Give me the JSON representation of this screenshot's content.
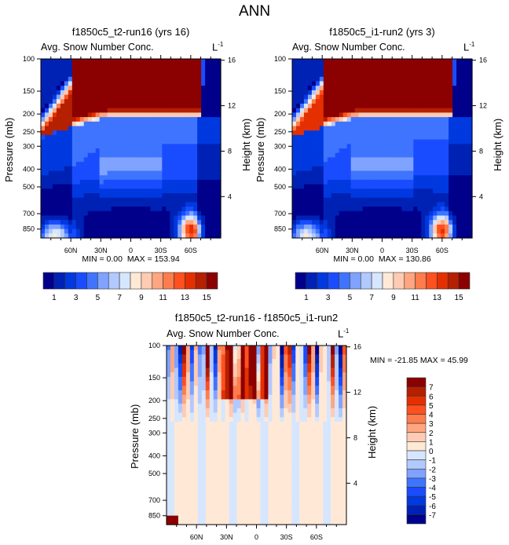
{
  "main_title": "ANN",
  "chart_data": [
    {
      "type": "heatmap",
      "title": "f1850c5_t2-run16 (yrs 16)",
      "subtitle": "Avg. Snow Number Conc.",
      "units": "L",
      "units_exp": "-1",
      "ylabel": "Pressure (mb)",
      "ylabel_right": "Height (km)",
      "yticks": [
        "100",
        "150",
        "200",
        "250",
        "300",
        "400",
        "500",
        "700",
        "850"
      ],
      "yticks_right": [
        "16",
        "12",
        "8",
        "4"
      ],
      "xticks": [
        "60N",
        "30N",
        "0",
        "30S",
        "60S"
      ],
      "min_label": "MIN =   0.00",
      "max_label": "MAX = 153.94",
      "colorbar_labels": [
        "1",
        "3",
        "5",
        "7",
        "9",
        "11",
        "13",
        "15"
      ],
      "colorbar_levels": [
        1,
        2,
        3,
        4,
        5,
        6,
        7,
        8,
        9,
        10,
        11,
        12,
        13,
        14,
        15
      ]
    },
    {
      "type": "heatmap",
      "title": "f1850c5_i1-run2 (yrs 3)",
      "subtitle": "Avg. Snow Number Conc.",
      "units": "L",
      "units_exp": "-1",
      "ylabel": "Pressure (mb)",
      "ylabel_right": "Height (km)",
      "yticks": [
        "100",
        "150",
        "200",
        "250",
        "300",
        "400",
        "500",
        "700",
        "850"
      ],
      "yticks_right": [
        "16",
        "12",
        "8",
        "4"
      ],
      "xticks": [
        "60N",
        "30N",
        "0",
        "30S",
        "60S"
      ],
      "min_label": "MIN =   0.00",
      "max_label": "MAX = 130.86",
      "colorbar_labels": [
        "1",
        "3",
        "5",
        "7",
        "9",
        "11",
        "13",
        "15"
      ],
      "colorbar_levels": [
        1,
        2,
        3,
        4,
        5,
        6,
        7,
        8,
        9,
        10,
        11,
        12,
        13,
        14,
        15
      ]
    },
    {
      "type": "heatmap",
      "title": "f1850c5_t2-run16 - f1850c5_i1-run2",
      "subtitle": "Avg. Snow Number Conc.",
      "units": "L",
      "units_exp": "-1",
      "ylabel": "Pressure (mb)",
      "ylabel_right": "Height (km)",
      "yticks": [
        "100",
        "150",
        "200",
        "250",
        "300",
        "400",
        "500",
        "700",
        "850"
      ],
      "yticks_right": [
        "16",
        "12",
        "8",
        "4"
      ],
      "xticks": [
        "60N",
        "30N",
        "0",
        "30S",
        "60S"
      ],
      "minmax_label": "MIN = -21.85  MAX =  45.99",
      "colorbar_labels": [
        "7",
        "6",
        "5",
        "4",
        "3",
        "2",
        "1",
        "0",
        "-1",
        "-2",
        "-3",
        "-4",
        "-5",
        "-6",
        "-7"
      ],
      "colorbar_levels": [
        -7,
        -6,
        -5,
        -4,
        -3,
        -2,
        -1,
        0,
        1,
        2,
        3,
        4,
        5,
        6,
        7
      ]
    }
  ],
  "palette": [
    "#00008b",
    "#0022b4",
    "#0039e0",
    "#1a4cff",
    "#3f74ff",
    "#7fa3ff",
    "#b2c9ff",
    "#d6e6ff",
    "#ffe9d6",
    "#ffcbb2",
    "#ffa680",
    "#ff7c4c",
    "#ff5020",
    "#e43000",
    "#b42000",
    "#8b0000"
  ]
}
